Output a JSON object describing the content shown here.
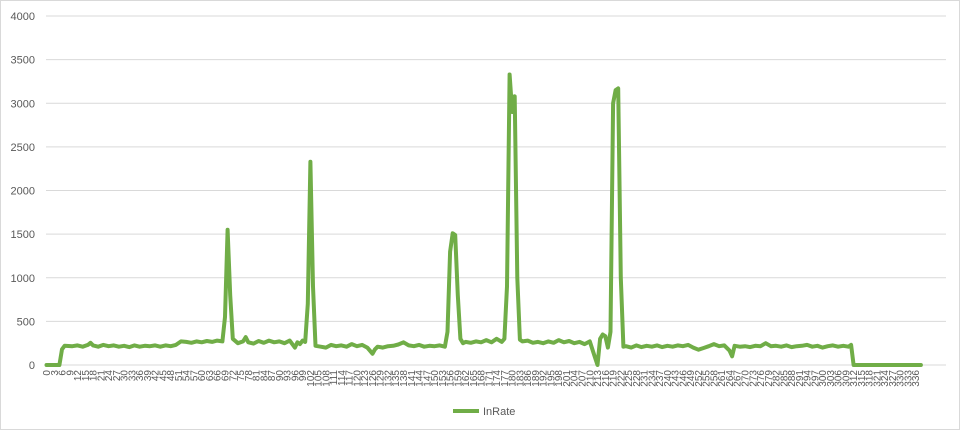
{
  "chart_data": {
    "type": "line",
    "title": "",
    "xlabel": "",
    "ylabel": "",
    "ylim": [
      0,
      4000
    ],
    "yticks": [
      0,
      500,
      1000,
      1500,
      2000,
      2500,
      3000,
      3500,
      4000
    ],
    "xlim": [
      0,
      336
    ],
    "x_tick_step": 3,
    "grid": true,
    "legend": "bottom",
    "series": [
      {
        "name": "InRate",
        "color": "#70ad47",
        "points": [
          [
            0,
            0
          ],
          [
            5,
            0
          ],
          [
            6,
            180
          ],
          [
            7,
            220
          ],
          [
            10,
            215
          ],
          [
            12,
            225
          ],
          [
            14,
            210
          ],
          [
            16,
            230
          ],
          [
            17,
            255
          ],
          [
            18,
            225
          ],
          [
            20,
            210
          ],
          [
            22,
            230
          ],
          [
            24,
            215
          ],
          [
            26,
            225
          ],
          [
            28,
            210
          ],
          [
            30,
            220
          ],
          [
            32,
            205
          ],
          [
            34,
            225
          ],
          [
            36,
            210
          ],
          [
            38,
            220
          ],
          [
            40,
            215
          ],
          [
            42,
            225
          ],
          [
            44,
            210
          ],
          [
            46,
            225
          ],
          [
            48,
            215
          ],
          [
            50,
            230
          ],
          [
            52,
            270
          ],
          [
            54,
            265
          ],
          [
            56,
            255
          ],
          [
            58,
            270
          ],
          [
            60,
            260
          ],
          [
            62,
            275
          ],
          [
            64,
            265
          ],
          [
            66,
            280
          ],
          [
            68,
            270
          ],
          [
            69,
            550
          ],
          [
            70,
            1550
          ],
          [
            71,
            800
          ],
          [
            72,
            300
          ],
          [
            74,
            250
          ],
          [
            76,
            270
          ],
          [
            77,
            320
          ],
          [
            78,
            260
          ],
          [
            80,
            245
          ],
          [
            82,
            275
          ],
          [
            84,
            255
          ],
          [
            86,
            280
          ],
          [
            88,
            260
          ],
          [
            90,
            270
          ],
          [
            92,
            250
          ],
          [
            94,
            280
          ],
          [
            96,
            200
          ],
          [
            97,
            260
          ],
          [
            98,
            240
          ],
          [
            99,
            280
          ],
          [
            100,
            265
          ],
          [
            101,
            700
          ],
          [
            102,
            2330
          ],
          [
            103,
            900
          ],
          [
            104,
            220
          ],
          [
            106,
            210
          ],
          [
            108,
            200
          ],
          [
            110,
            230
          ],
          [
            112,
            215
          ],
          [
            114,
            225
          ],
          [
            116,
            210
          ],
          [
            118,
            240
          ],
          [
            120,
            215
          ],
          [
            122,
            230
          ],
          [
            124,
            200
          ],
          [
            126,
            130
          ],
          [
            127,
            180
          ],
          [
            128,
            210
          ],
          [
            130,
            200
          ],
          [
            132,
            215
          ],
          [
            134,
            220
          ],
          [
            136,
            235
          ],
          [
            138,
            260
          ],
          [
            140,
            225
          ],
          [
            142,
            215
          ],
          [
            144,
            230
          ],
          [
            146,
            210
          ],
          [
            148,
            220
          ],
          [
            150,
            215
          ],
          [
            152,
            225
          ],
          [
            154,
            210
          ],
          [
            155,
            380
          ],
          [
            156,
            1300
          ],
          [
            157,
            1510
          ],
          [
            158,
            1490
          ],
          [
            159,
            800
          ],
          [
            160,
            300
          ],
          [
            161,
            250
          ],
          [
            162,
            265
          ],
          [
            164,
            255
          ],
          [
            166,
            270
          ],
          [
            168,
            260
          ],
          [
            170,
            285
          ],
          [
            172,
            260
          ],
          [
            174,
            300
          ],
          [
            176,
            265
          ],
          [
            177,
            300
          ],
          [
            178,
            900
          ],
          [
            179,
            3330
          ],
          [
            180,
            2900
          ],
          [
            181,
            3080
          ],
          [
            182,
            1000
          ],
          [
            183,
            290
          ],
          [
            184,
            270
          ],
          [
            186,
            280
          ],
          [
            188,
            255
          ],
          [
            190,
            265
          ],
          [
            192,
            250
          ],
          [
            194,
            270
          ],
          [
            196,
            255
          ],
          [
            198,
            285
          ],
          [
            200,
            260
          ],
          [
            202,
            275
          ],
          [
            204,
            250
          ],
          [
            206,
            265
          ],
          [
            208,
            240
          ],
          [
            210,
            270
          ],
          [
            212,
            90
          ],
          [
            213,
            0
          ],
          [
            214,
            300
          ],
          [
            215,
            350
          ],
          [
            216,
            330
          ],
          [
            217,
            200
          ],
          [
            218,
            380
          ],
          [
            219,
            3000
          ],
          [
            220,
            3150
          ],
          [
            221,
            3170
          ],
          [
            222,
            1000
          ],
          [
            223,
            210
          ],
          [
            224,
            215
          ],
          [
            226,
            200
          ],
          [
            228,
            225
          ],
          [
            230,
            205
          ],
          [
            232,
            220
          ],
          [
            234,
            210
          ],
          [
            236,
            225
          ],
          [
            238,
            205
          ],
          [
            240,
            220
          ],
          [
            242,
            210
          ],
          [
            244,
            225
          ],
          [
            246,
            215
          ],
          [
            248,
            230
          ],
          [
            250,
            200
          ],
          [
            252,
            175
          ],
          [
            254,
            195
          ],
          [
            256,
            215
          ],
          [
            258,
            240
          ],
          [
            260,
            215
          ],
          [
            262,
            225
          ],
          [
            264,
            165
          ],
          [
            265,
            100
          ],
          [
            266,
            220
          ],
          [
            268,
            210
          ],
          [
            270,
            215
          ],
          [
            272,
            205
          ],
          [
            274,
            220
          ],
          [
            276,
            215
          ],
          [
            278,
            250
          ],
          [
            280,
            215
          ],
          [
            282,
            220
          ],
          [
            284,
            210
          ],
          [
            286,
            225
          ],
          [
            288,
            205
          ],
          [
            290,
            215
          ],
          [
            292,
            220
          ],
          [
            294,
            230
          ],
          [
            296,
            210
          ],
          [
            298,
            220
          ],
          [
            300,
            200
          ],
          [
            302,
            215
          ],
          [
            304,
            225
          ],
          [
            306,
            210
          ],
          [
            308,
            220
          ],
          [
            310,
            210
          ],
          [
            311,
            230
          ],
          [
            312,
            0
          ],
          [
            338,
            0
          ]
        ]
      }
    ]
  }
}
